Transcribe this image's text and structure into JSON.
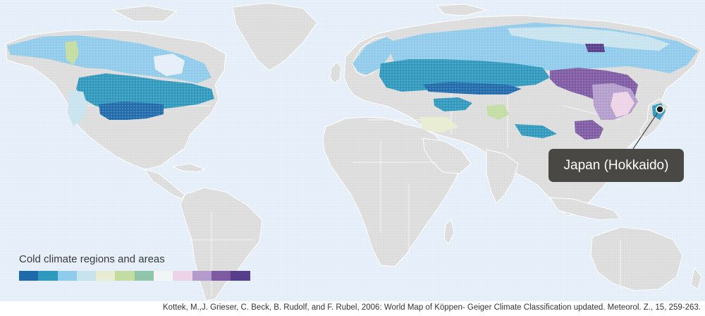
{
  "legend": {
    "title": "Cold climate regions and areas",
    "colors": [
      "#1f6aab",
      "#2e98bd",
      "#8fcbea",
      "#c7e3ee",
      "#e8ecd0",
      "#c2dca1",
      "#8fc6a9",
      "#f2f5f6",
      "#ecd3e6",
      "#b39ccc",
      "#7e5aa2",
      "#573e8a"
    ]
  },
  "callout": {
    "label": "Japan (Hokkaido)"
  },
  "source": "Kottek, M.,J. Grieser, C. Beck, B. Rudolf, and F. Rubel, 2006: World Map of Köppen- Geiger Climate Classification updated. Meteorol. Z., 15, 259-263.",
  "colors": {
    "ocean": "#e4eef8",
    "land": "#dcdcdc",
    "border": "#ffffff",
    "callout_bg": "#4a4845"
  }
}
